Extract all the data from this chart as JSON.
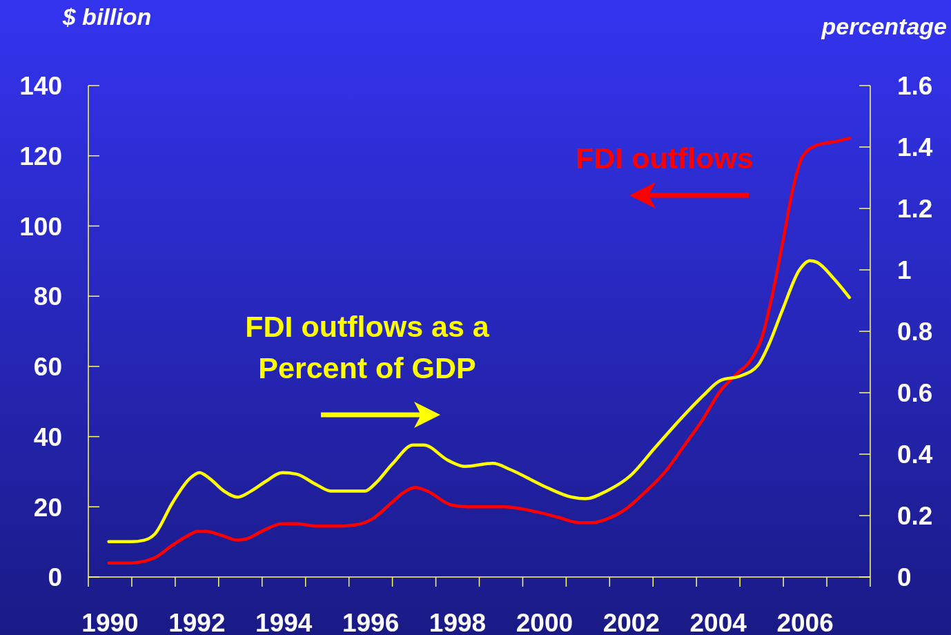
{
  "chart_data": {
    "type": "line",
    "ylabel": "$ billion",
    "y2label": "percentage",
    "xlim": [
      1989.5,
      2007.5
    ],
    "xticks": [
      {
        "value": 1989.5,
        "label": null
      },
      {
        "value": 1990,
        "label": "1990"
      },
      {
        "value": 1990.5,
        "label": null
      },
      {
        "value": 1991.5,
        "label": null
      },
      {
        "value": 1992,
        "label": "1992"
      },
      {
        "value": 1992.5,
        "label": null
      },
      {
        "value": 1993.5,
        "label": null
      },
      {
        "value": 1994,
        "label": "1994"
      },
      {
        "value": 1994.5,
        "label": null
      },
      {
        "value": 1995.5,
        "label": null
      },
      {
        "value": 1996,
        "label": "1996"
      },
      {
        "value": 1996.5,
        "label": null
      },
      {
        "value": 1997.5,
        "label": null
      },
      {
        "value": 1998,
        "label": "1998"
      },
      {
        "value": 1998.5,
        "label": null
      },
      {
        "value": 1999.5,
        "label": null
      },
      {
        "value": 2000,
        "label": "2000"
      },
      {
        "value": 2000.5,
        "label": null
      },
      {
        "value": 2001.5,
        "label": null
      },
      {
        "value": 2002,
        "label": "2002"
      },
      {
        "value": 2002.5,
        "label": null
      },
      {
        "value": 2003.5,
        "label": null
      },
      {
        "value": 2004,
        "label": "2004"
      },
      {
        "value": 2004.5,
        "label": null
      },
      {
        "value": 2005.5,
        "label": null
      },
      {
        "value": 2006,
        "label": "2006"
      },
      {
        "value": 2006.5,
        "label": null
      },
      {
        "value": 2007.5,
        "label": null
      }
    ],
    "ylim": [
      0,
      140
    ],
    "yticks": [
      0,
      20,
      40,
      60,
      80,
      100,
      120,
      140
    ],
    "y2lim": [
      0,
      1.6
    ],
    "y2ticks": [
      0,
      {
        "value": 0.2,
        "label": "0.2"
      },
      {
        "value": 0.4,
        "label": "0.4"
      },
      {
        "value": 0.6,
        "label": "0.6"
      },
      {
        "value": 0.8,
        "label": "0.8"
      },
      1,
      {
        "value": 1.2,
        "label": "1.2"
      },
      {
        "value": 1.4,
        "label": "1.4"
      },
      {
        "value": 1.6,
        "label": "1.6"
      }
    ],
    "grid": false,
    "marker": "none",
    "line_style": "solid",
    "series": [
      {
        "name": "FDI outflows",
        "color": "#ff0000",
        "x": [
          1989.97,
          1990.48,
          1990.79,
          1991.03,
          1991.43,
          1991.75,
          1992.02,
          1992.22,
          1992.54,
          1992.94,
          1993.17,
          1993.49,
          1993.97,
          1994.29,
          1994.76,
          1995.24,
          1995.71,
          1996.03,
          1996.51,
          1996.75,
          1997.02,
          1997.3,
          1997.86,
          1998.25,
          1999.05,
          1999.84,
          2000.32,
          2000.79,
          2001.11,
          2001.43,
          2001.83,
          2002.3,
          2002.78,
          2003.25,
          2003.65,
          2004.05,
          2004.44,
          2004.76,
          2005.0,
          2005.24,
          2005.48,
          2005.71,
          2005.95,
          2006.27,
          2006.67,
          2007.02
        ],
        "values": [
          4,
          4,
          4.5,
          5.5,
          9,
          11.5,
          13,
          13,
          12,
          10.5,
          11,
          13,
          15.2,
          15.2,
          14.5,
          14.5,
          15,
          16.5,
          21.5,
          24,
          25.5,
          24.5,
          20.5,
          20,
          20,
          18.5,
          17,
          15.5,
          15.5,
          16.5,
          19,
          24,
          30,
          38,
          45,
          53,
          58,
          62,
          68,
          80,
          95,
          110,
          120,
          123,
          124,
          125
        ]
      },
      {
        "name": "FDI outflows as a Percent of GDP",
        "color": "#ffff00",
        "axis": "y2",
        "x": [
          1989.97,
          1990.48,
          1990.79,
          1991.03,
          1991.43,
          1991.83,
          1992.06,
          1992.3,
          1992.62,
          1992.94,
          1993.25,
          1993.57,
          1993.97,
          1994.29,
          1994.76,
          1995.08,
          1995.56,
          1995.87,
          1996.11,
          1996.51,
          1996.98,
          1997.22,
          1997.78,
          1998.17,
          1998.81,
          1999.21,
          2000.0,
          2000.63,
          2000.95,
          2001.43,
          2001.98,
          2002.54,
          2003.17,
          2003.65,
          2004.05,
          2004.52,
          2004.92,
          2005.16,
          2005.48,
          2005.87,
          2006.11,
          2006.27,
          2006.67,
          2007.02
        ],
        "values": [
          0.115,
          0.115,
          0.12,
          0.14,
          0.24,
          0.32,
          0.34,
          0.32,
          0.28,
          0.26,
          0.28,
          0.31,
          0.34,
          0.335,
          0.3,
          0.28,
          0.28,
          0.28,
          0.305,
          0.37,
          0.43,
          0.43,
          0.38,
          0.36,
          0.37,
          0.35,
          0.295,
          0.26,
          0.255,
          0.28,
          0.33,
          0.42,
          0.52,
          0.59,
          0.64,
          0.655,
          0.69,
          0.755,
          0.87,
          1.0,
          1.03,
          1.025,
          0.97,
          0.91
        ]
      }
    ]
  }
}
